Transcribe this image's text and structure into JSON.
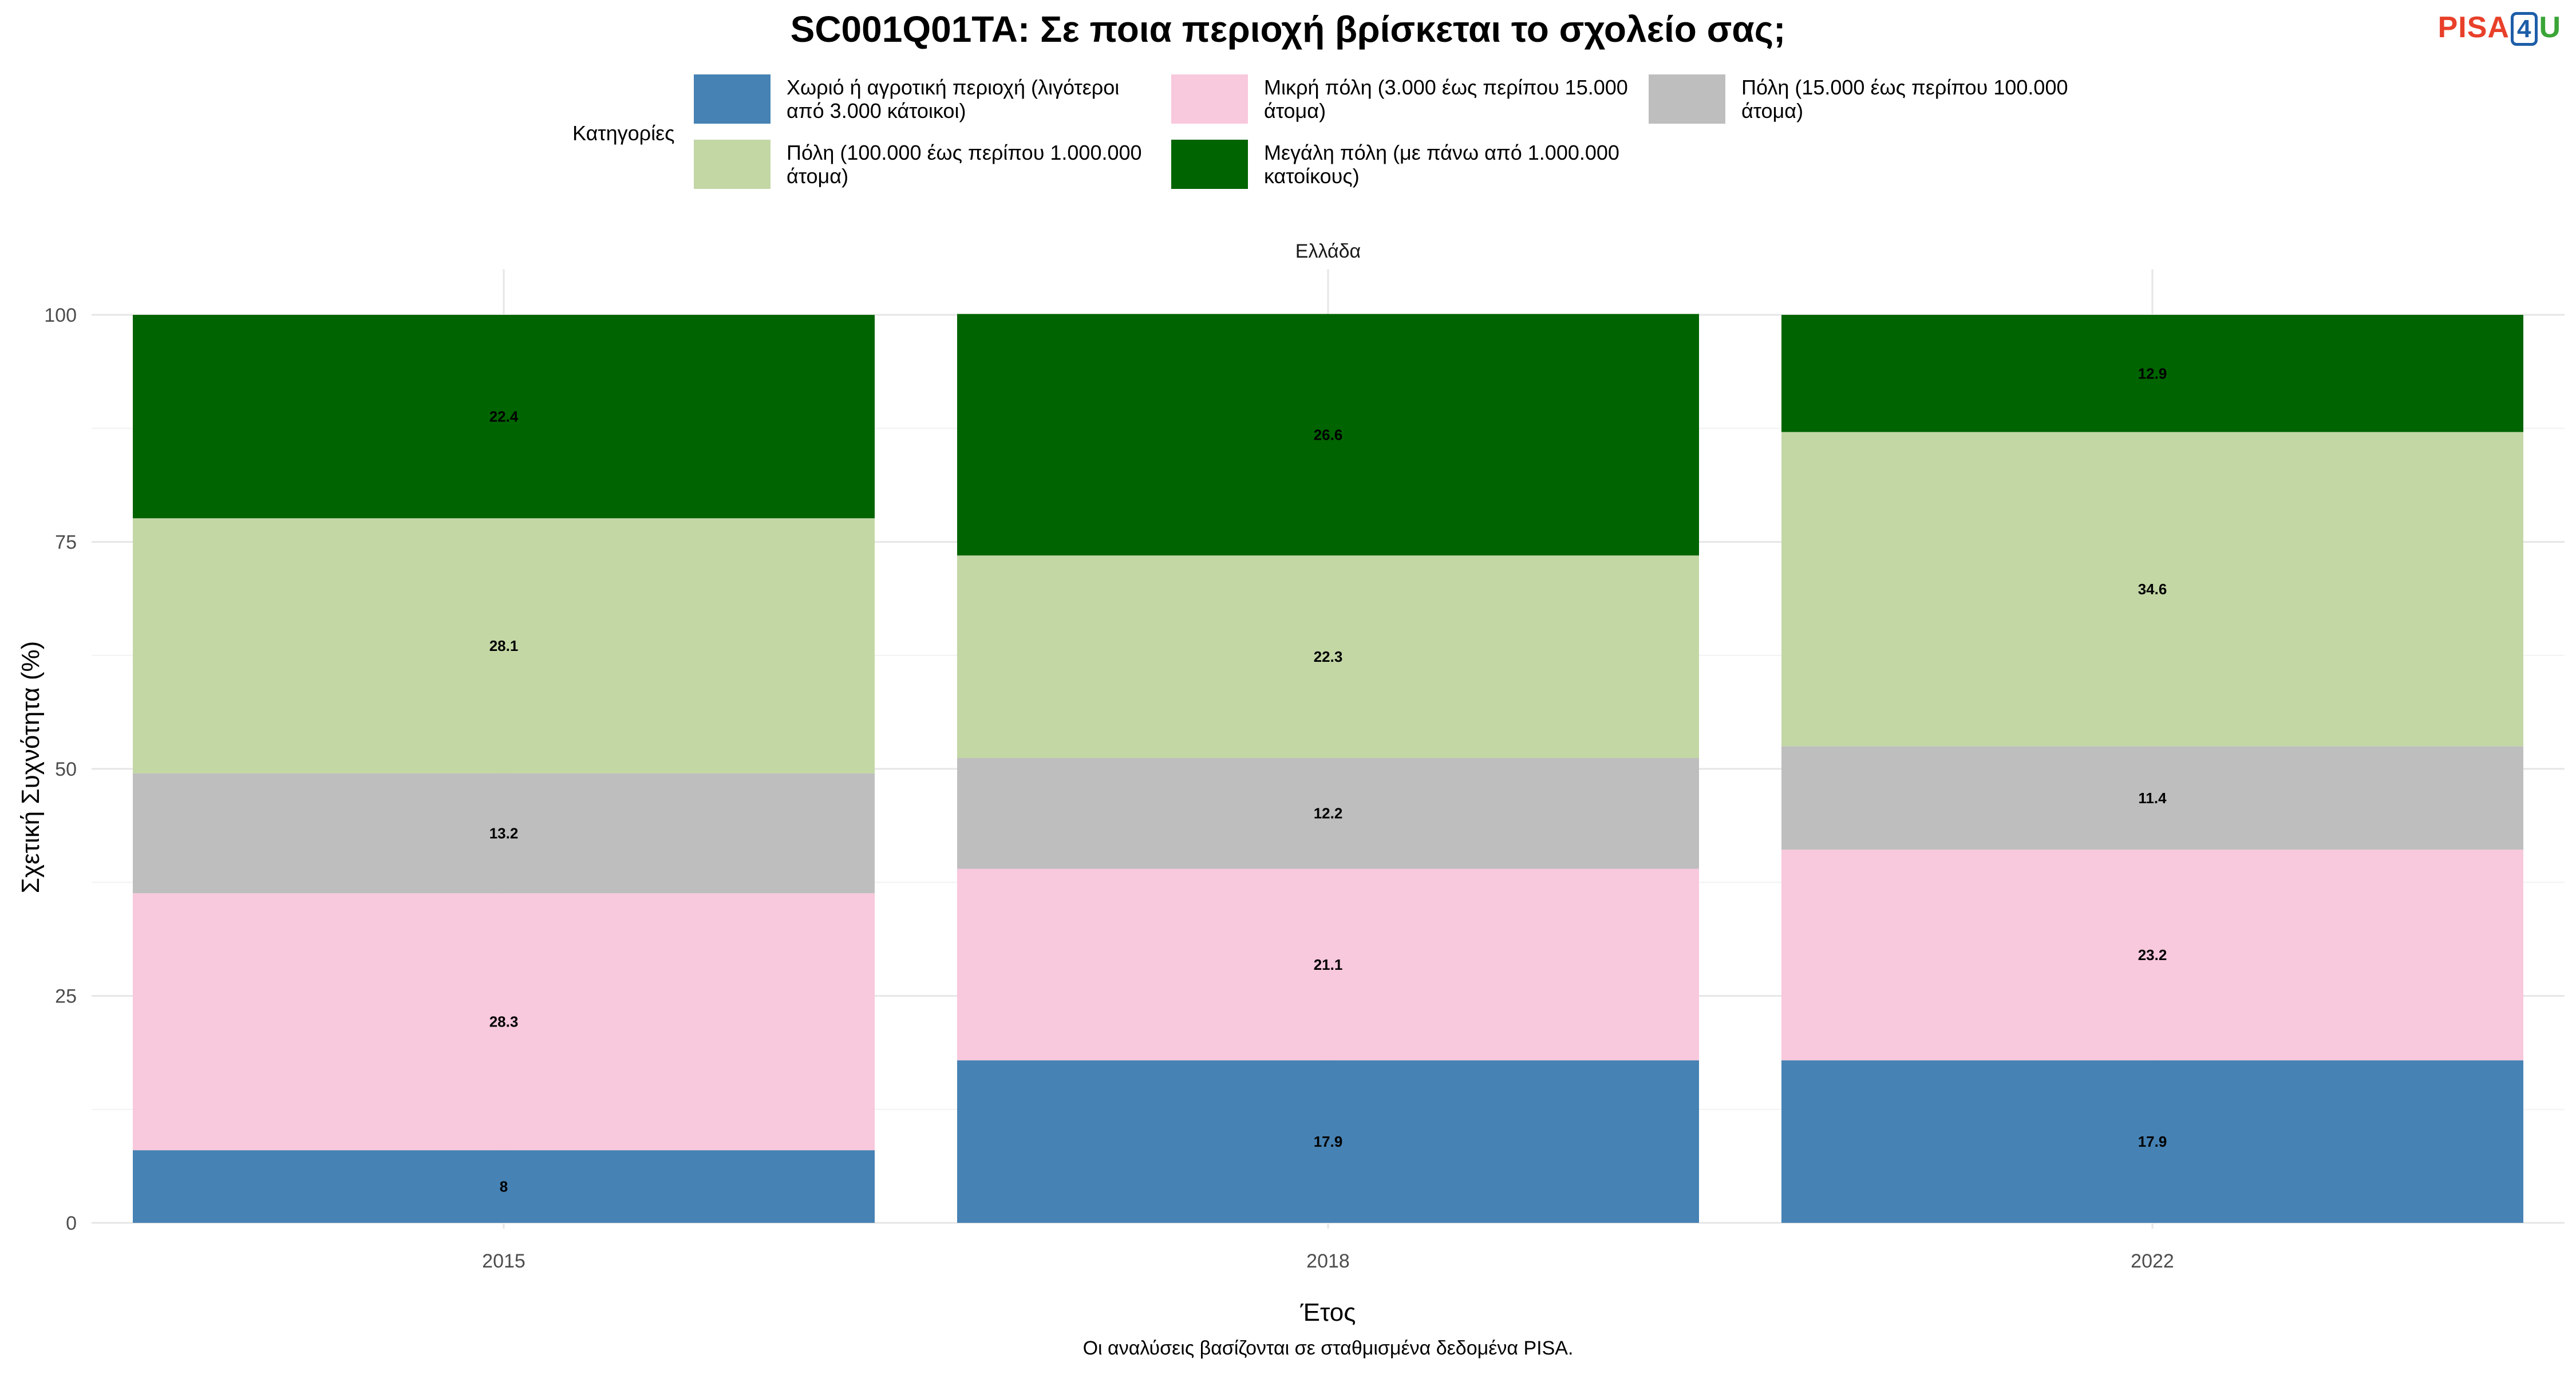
{
  "header": {
    "title": "SC001Q01TA: Σε ποια περιοχή βρίσκεται το σχολείο σας;",
    "logo": {
      "part1": "PISA",
      "part2": "4",
      "part3": "U"
    }
  },
  "legend": {
    "title": "Κατηγορίες",
    "items": [
      {
        "label": "Χωριό ή αγροτική περιοχή (λιγότεροι από 3.000 κάτοικοι)",
        "color": "#4682b4"
      },
      {
        "label": "Μικρή πόλη (3.000 έως περίπου 15.000 άτομα)",
        "color": "#f8c8dc"
      },
      {
        "label": "Πόλη (15.000 έως περίπου 100.000 άτομα)",
        "color": "#bebebe"
      },
      {
        "label": "Πόλη (100.000 έως περίπου 1.000.000 άτομα)",
        "color": "#c3d7a5"
      },
      {
        "label": "Μεγάλη πόλη (με πάνω από 1.000.000 κατοίκους)",
        "color": "#006400"
      }
    ]
  },
  "caption": "Οι αναλύσεις βασίζονται σε σταθμισμένα δεδομένα PISA.",
  "chart_data": {
    "type": "bar",
    "stacked": true,
    "facet": "Ελλάδα",
    "title": "SC001Q01TA: Σε ποια περιοχή βρίσκεται το σχολείο σας;",
    "xlabel": "Έτος",
    "ylabel": "Σχετική Συχνότητα (%)",
    "categories": [
      "2015",
      "2018",
      "2022"
    ],
    "ylim": [
      0,
      100
    ],
    "yticks": [
      0,
      25,
      50,
      75,
      100
    ],
    "legend_position": "top",
    "grid": true,
    "series": [
      {
        "name": "Χωριό ή αγροτική περιοχή (λιγότεροι από 3.000 κάτοικοι)",
        "values": [
          8,
          17.9,
          17.9
        ],
        "color": "#4682b4"
      },
      {
        "name": "Μικρή πόλη (3.000 έως περίπου 15.000 άτομα)",
        "values": [
          28.3,
          21.1,
          23.2
        ],
        "color": "#f8c8dc"
      },
      {
        "name": "Πόλη (15.000 έως περίπου 100.000 άτομα)",
        "values": [
          13.2,
          12.2,
          11.4
        ],
        "color": "#bebebe"
      },
      {
        "name": "Πόλη (100.000 έως περίπου 1.000.000 άτομα)",
        "values": [
          28.1,
          22.3,
          34.6
        ],
        "color": "#c3d7a5"
      },
      {
        "name": "Μεγάλη πόλη (με πάνω από 1.000.000 κατοίκους)",
        "values": [
          22.4,
          26.6,
          12.9
        ],
        "color": "#006400"
      }
    ]
  }
}
